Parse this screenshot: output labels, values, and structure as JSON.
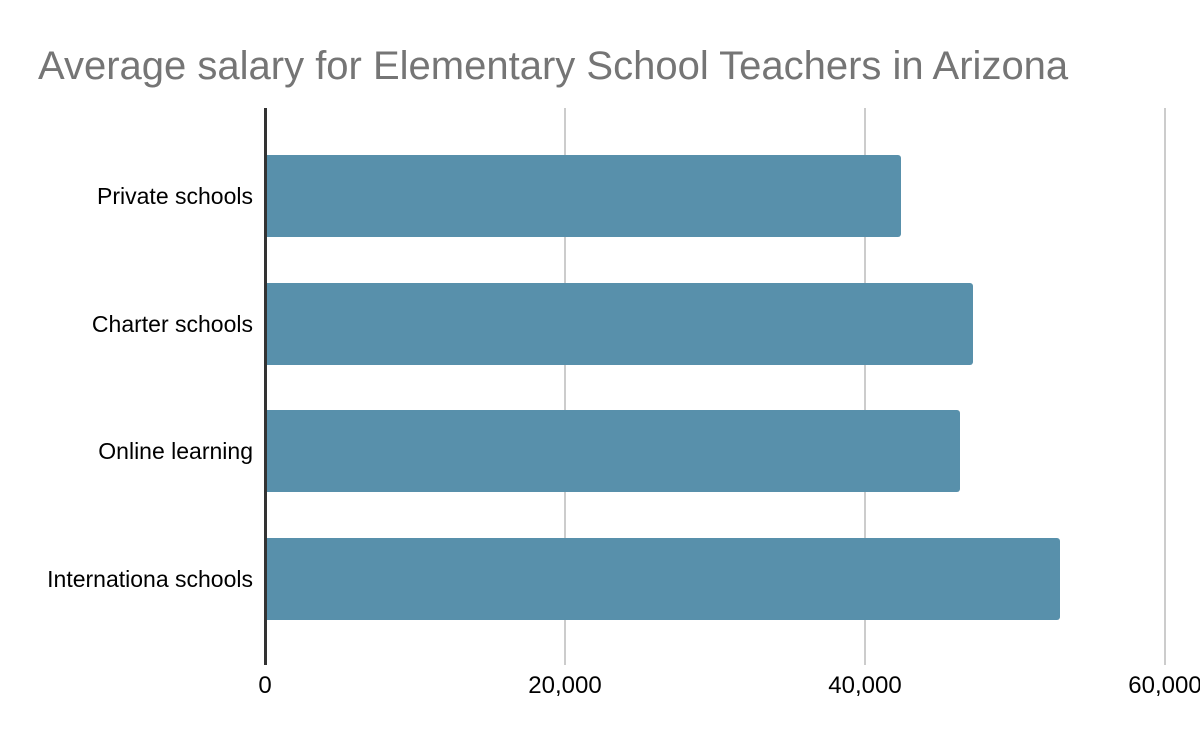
{
  "chart_data": {
    "type": "bar",
    "orientation": "horizontal",
    "title": "Average salary for Elementary School Teachers in Arizona",
    "categories": [
      "Private schools",
      "Charter schools",
      "Online learning",
      "Internationa schools"
    ],
    "values": [
      42400,
      47200,
      46300,
      53000
    ],
    "xlabel": "",
    "ylabel": "",
    "xlim": [
      0,
      60000
    ],
    "x_ticks": [
      0,
      20000,
      40000,
      60000
    ],
    "x_tick_labels": [
      "0",
      "20,000",
      "40,000",
      "60,000"
    ],
    "grid": "vertical-only",
    "legend": "none",
    "bar_color": "#5890ab"
  },
  "colors": {
    "bar": "#5890ab",
    "title_text": "#757575",
    "gridline": "#cccccc",
    "axis_line": "#333333",
    "label_text": "#000000",
    "background": "#ffffff"
  }
}
